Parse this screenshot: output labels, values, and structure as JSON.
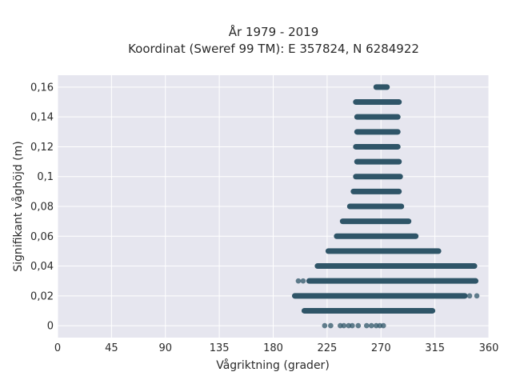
{
  "chart_data": {
    "type": "scatter",
    "title": [
      "År 1979 - 2019",
      "Koordinat (Sweref 99 TM): E 357824, N 6284922"
    ],
    "xlabel": "Vågriktning (grader)",
    "ylabel": "Signifikant våghöjd (m)",
    "xlim": [
      0,
      360
    ],
    "ylim": [
      -0.008,
      0.168
    ],
    "xticks": [
      {
        "v": 0,
        "label": "0"
      },
      {
        "v": 45,
        "label": "45"
      },
      {
        "v": 90,
        "label": "90"
      },
      {
        "v": 135,
        "label": "135"
      },
      {
        "v": 180,
        "label": "180"
      },
      {
        "v": 225,
        "label": "225"
      },
      {
        "v": 270,
        "label": "270"
      },
      {
        "v": 315,
        "label": "315"
      },
      {
        "v": 360,
        "label": "360"
      }
    ],
    "yticks": [
      {
        "v": 0,
        "label": "0"
      },
      {
        "v": 0.02,
        "label": "0,02"
      },
      {
        "v": 0.04,
        "label": "0,04"
      },
      {
        "v": 0.06,
        "label": "0,06"
      },
      {
        "v": 0.08,
        "label": "0,08"
      },
      {
        "v": 0.1,
        "label": "0,1"
      },
      {
        "v": 0.12,
        "label": "0,12"
      },
      {
        "v": 0.14,
        "label": "0,14"
      },
      {
        "v": 0.16,
        "label": "0,16"
      }
    ],
    "grid": true,
    "marker_color": "#2f5568",
    "background_color": "#e6e6ef",
    "bands": [
      {
        "y": 0.0,
        "x_min": 223,
        "x_max": 272,
        "sparse": true,
        "points": [
          223,
          228,
          236,
          239,
          243,
          246,
          251,
          258,
          262,
          266,
          269,
          272
        ]
      },
      {
        "y": 0.01,
        "x_min": 206,
        "x_max": 313
      },
      {
        "y": 0.02,
        "x_min": 198,
        "x_max": 340,
        "extra": [
          344,
          350
        ]
      },
      {
        "y": 0.03,
        "x_min": 210,
        "x_max": 349,
        "extra": [
          201,
          205
        ]
      },
      {
        "y": 0.04,
        "x_min": 217,
        "x_max": 348
      },
      {
        "y": 0.05,
        "x_min": 226,
        "x_max": 318
      },
      {
        "y": 0.06,
        "x_min": 233,
        "x_max": 299
      },
      {
        "y": 0.07,
        "x_min": 238,
        "x_max": 293
      },
      {
        "y": 0.08,
        "x_min": 244,
        "x_max": 287
      },
      {
        "y": 0.09,
        "x_min": 247,
        "x_max": 285
      },
      {
        "y": 0.1,
        "x_min": 249,
        "x_max": 286
      },
      {
        "y": 0.11,
        "x_min": 250,
        "x_max": 285
      },
      {
        "y": 0.12,
        "x_min": 249,
        "x_max": 284
      },
      {
        "y": 0.13,
        "x_min": 250,
        "x_max": 284
      },
      {
        "y": 0.14,
        "x_min": 250,
        "x_max": 284
      },
      {
        "y": 0.15,
        "x_min": 249,
        "x_max": 285
      },
      {
        "y": 0.16,
        "x_min": 266,
        "x_max": 275
      }
    ]
  }
}
